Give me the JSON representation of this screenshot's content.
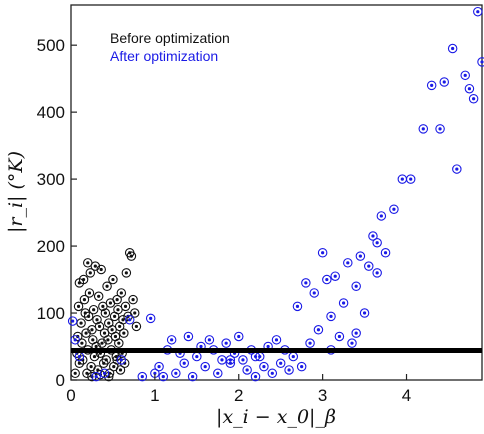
{
  "chart_data": {
    "type": "scatter",
    "title": "",
    "xlabel": "|x_i − x_0|_β",
    "ylabel": "|r_i| (°K)",
    "xlim": [
      0,
      4.9
    ],
    "ylim": [
      0,
      560
    ],
    "xticks": [
      "0",
      "1",
      "2",
      "3",
      "4"
    ],
    "yticks": [
      "0",
      "100",
      "200",
      "300",
      "400",
      "500"
    ],
    "grid": false,
    "legend_position": "top-left",
    "threshold_y": 44,
    "colors": {
      "before": "#111111",
      "after": "#1a1ae6",
      "threshold": "#000000"
    },
    "series": [
      {
        "name": "Before optimization",
        "points": [
          [
            0.05,
            10
          ],
          [
            0.07,
            40
          ],
          [
            0.08,
            65
          ],
          [
            0.09,
            110
          ],
          [
            0.1,
            145
          ],
          [
            0.1,
            25
          ],
          [
            0.12,
            85
          ],
          [
            0.13,
            55
          ],
          [
            0.14,
            30
          ],
          [
            0.15,
            150
          ],
          [
            0.16,
            120
          ],
          [
            0.17,
            100
          ],
          [
            0.18,
            70
          ],
          [
            0.19,
            10
          ],
          [
            0.2,
            45
          ],
          [
            0.21,
            95
          ],
          [
            0.22,
            130
          ],
          [
            0.23,
            160
          ],
          [
            0.24,
            20
          ],
          [
            0.25,
            75
          ],
          [
            0.26,
            60
          ],
          [
            0.27,
            105
          ],
          [
            0.28,
            35
          ],
          [
            0.29,
            170
          ],
          [
            0.3,
            50
          ],
          [
            0.31,
            90
          ],
          [
            0.32,
            15
          ],
          [
            0.33,
            125
          ],
          [
            0.34,
            80
          ],
          [
            0.35,
            40
          ],
          [
            0.36,
            165
          ],
          [
            0.37,
            55
          ],
          [
            0.38,
            110
          ],
          [
            0.39,
            25
          ],
          [
            0.4,
            70
          ],
          [
            0.41,
            100
          ],
          [
            0.42,
            30
          ],
          [
            0.43,
            140
          ],
          [
            0.44,
            60
          ],
          [
            0.45,
            85
          ],
          [
            0.46,
            10
          ],
          [
            0.47,
            115
          ],
          [
            0.48,
            45
          ],
          [
            0.49,
            75
          ],
          [
            0.5,
            150
          ],
          [
            0.51,
            20
          ],
          [
            0.52,
            95
          ],
          [
            0.53,
            65
          ],
          [
            0.54,
            35
          ],
          [
            0.55,
            120
          ],
          [
            0.56,
            105
          ],
          [
            0.57,
            55
          ],
          [
            0.58,
            80
          ],
          [
            0.59,
            15
          ],
          [
            0.6,
            130
          ],
          [
            0.61,
            40
          ],
          [
            0.62,
            90
          ],
          [
            0.63,
            70
          ],
          [
            0.64,
            25
          ],
          [
            0.65,
            110
          ],
          [
            0.66,
            160
          ],
          [
            0.68,
            95
          ],
          [
            0.7,
            190
          ],
          [
            0.72,
            185
          ],
          [
            0.74,
            120
          ],
          [
            0.76,
            100
          ],
          [
            0.78,
            80
          ],
          [
            0.55,
            30
          ],
          [
            0.45,
            5
          ],
          [
            0.35,
            8
          ],
          [
            0.25,
            5
          ],
          [
            0.2,
            175
          ]
        ]
      },
      {
        "name": "After optimization",
        "points": [
          [
            0.02,
            88
          ],
          [
            0.05,
            60
          ],
          [
            0.1,
            35
          ],
          [
            0.3,
            5
          ],
          [
            0.4,
            10
          ],
          [
            0.6,
            30
          ],
          [
            0.7,
            90
          ],
          [
            0.85,
            5
          ],
          [
            0.95,
            92
          ],
          [
            1.0,
            10
          ],
          [
            1.05,
            20
          ],
          [
            1.1,
            5
          ],
          [
            1.15,
            45
          ],
          [
            1.2,
            60
          ],
          [
            1.25,
            10
          ],
          [
            1.3,
            40
          ],
          [
            1.35,
            25
          ],
          [
            1.4,
            65
          ],
          [
            1.45,
            5
          ],
          [
            1.5,
            35
          ],
          [
            1.55,
            50
          ],
          [
            1.6,
            20
          ],
          [
            1.65,
            60
          ],
          [
            1.7,
            45
          ],
          [
            1.75,
            10
          ],
          [
            1.8,
            30
          ],
          [
            1.85,
            55
          ],
          [
            1.9,
            25
          ],
          [
            1.95,
            40
          ],
          [
            2.0,
            65
          ],
          [
            2.05,
            30
          ],
          [
            2.1,
            15
          ],
          [
            2.15,
            45
          ],
          [
            2.2,
            5
          ],
          [
            2.25,
            35
          ],
          [
            2.3,
            20
          ],
          [
            2.35,
            50
          ],
          [
            2.4,
            10
          ],
          [
            2.45,
            60
          ],
          [
            2.5,
            25
          ],
          [
            2.55,
            45
          ],
          [
            2.6,
            15
          ],
          [
            2.65,
            35
          ],
          [
            2.7,
            110
          ],
          [
            2.75,
            20
          ],
          [
            2.8,
            145
          ],
          [
            2.85,
            55
          ],
          [
            2.9,
            130
          ],
          [
            2.95,
            75
          ],
          [
            3.0,
            190
          ],
          [
            3.05,
            150
          ],
          [
            3.1,
            95
          ],
          [
            3.15,
            155
          ],
          [
            3.2,
            65
          ],
          [
            3.25,
            115
          ],
          [
            3.3,
            175
          ],
          [
            3.35,
            55
          ],
          [
            3.4,
            140
          ],
          [
            3.45,
            185
          ],
          [
            3.5,
            100
          ],
          [
            3.55,
            170
          ],
          [
            3.6,
            215
          ],
          [
            3.65,
            205
          ],
          [
            3.7,
            245
          ],
          [
            3.75,
            190
          ],
          [
            3.85,
            255
          ],
          [
            3.95,
            300
          ],
          [
            4.05,
            300
          ],
          [
            4.2,
            375
          ],
          [
            4.3,
            440
          ],
          [
            4.4,
            375
          ],
          [
            4.45,
            445
          ],
          [
            4.55,
            495
          ],
          [
            4.6,
            315
          ],
          [
            4.7,
            455
          ],
          [
            4.75,
            435
          ],
          [
            4.8,
            420
          ],
          [
            4.85,
            550
          ],
          [
            4.9,
            475
          ],
          [
            3.4,
            70
          ],
          [
            3.1,
            45
          ],
          [
            2.2,
            35
          ],
          [
            1.9,
            30
          ],
          [
            3.65,
            160
          ]
        ]
      }
    ]
  }
}
